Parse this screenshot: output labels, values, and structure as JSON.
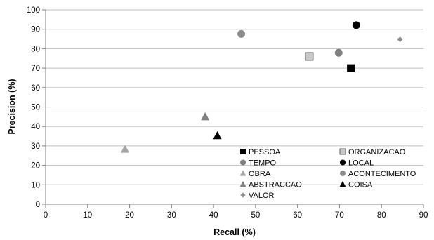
{
  "chart_data": {
    "type": "scatter",
    "title": "",
    "xlabel": "Recall (%)",
    "ylabel": "Precision (%)",
    "xlim": [
      0,
      90
    ],
    "ylim": [
      0,
      100
    ],
    "xticks": [
      0,
      10,
      20,
      30,
      40,
      50,
      60,
      70,
      80,
      90
    ],
    "yticks": [
      0,
      10,
      20,
      30,
      40,
      50,
      60,
      70,
      80,
      90,
      100
    ],
    "grid": "horizontal",
    "legend_position": "bottom-right",
    "series": [
      {
        "name": "PESSOA",
        "marker": "square",
        "color": "#000000",
        "x": 72.7,
        "y": 70.0
      },
      {
        "name": "ORGANIZACAO",
        "marker": "square",
        "color": "#c8c8c8",
        "x": 62.8,
        "y": 76.0
      },
      {
        "name": "TEMPO",
        "marker": "circle",
        "color": "#808080",
        "x": 69.8,
        "y": 77.9
      },
      {
        "name": "LOCAL",
        "marker": "circle",
        "color": "#000000",
        "x": 74.0,
        "y": 92.1
      },
      {
        "name": "OBRA",
        "marker": "triangle",
        "color": "#a6a6a6",
        "x": 18.9,
        "y": 28.3
      },
      {
        "name": "ACONTECIMENTO",
        "marker": "circle",
        "color": "#8c8c8c",
        "x": 46.6,
        "y": 87.6
      },
      {
        "name": "ABSTRACCAO",
        "marker": "triangle",
        "color": "#808080",
        "x": 38.0,
        "y": 45.0
      },
      {
        "name": "COISA",
        "marker": "triangle",
        "color": "#000000",
        "x": 40.9,
        "y": 35.3
      },
      {
        "name": "VALOR",
        "marker": "diamond",
        "color": "#8c8c8c",
        "x": 84.4,
        "y": 84.8
      }
    ]
  }
}
